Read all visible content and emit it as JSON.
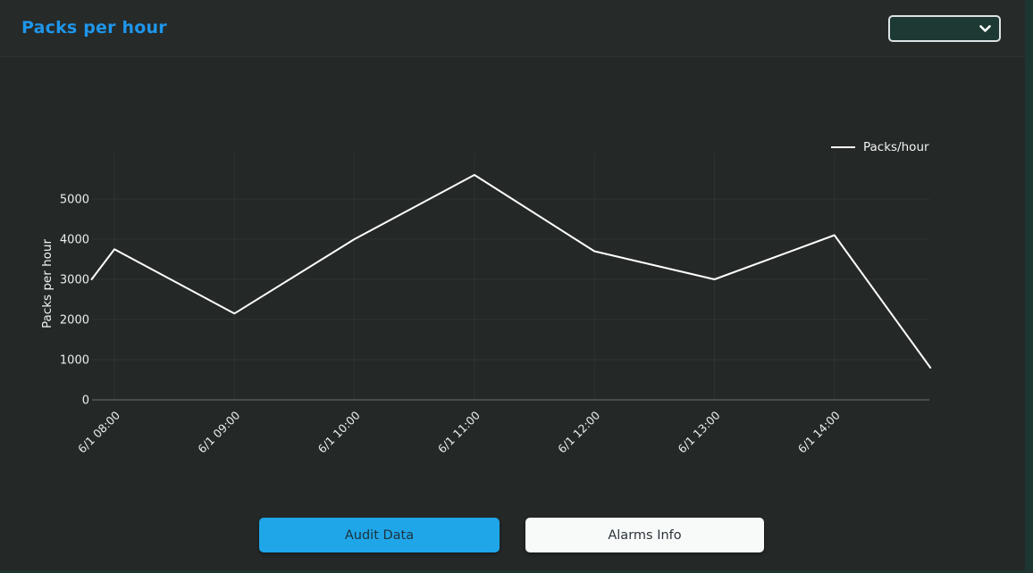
{
  "header": {
    "title": "Packs per hour"
  },
  "controls": {
    "range_select": {
      "selected_value": "",
      "icon": "chevron-down-icon"
    }
  },
  "colors": {
    "accent_blue": "#1e96ea",
    "background": "#242827",
    "frame_teal": "#1e3631",
    "dropdown_bg": "#1d3934",
    "line_color": "#ffffff",
    "primary_button_bg": "#1fa6e9",
    "light_button_bg": "#f8fafa"
  },
  "chart_data": {
    "type": "line",
    "title": "",
    "xlabel": "",
    "ylabel": "Packs per hour",
    "categories": [
      "6/1 08:00",
      "6/1 09:00",
      "6/1 10:00",
      "6/1 11:00",
      "6/1 12:00",
      "6/1 13:00",
      "6/1 14:00"
    ],
    "series": [
      {
        "name": "Packs/hour",
        "color": "#ffffff",
        "values": [
          3750,
          2150,
          4000,
          5600,
          3700,
          3000,
          4100
        ],
        "edge_points": {
          "pre": {
            "offset": -0.19,
            "value": 3000
          },
          "post": {
            "offset": 6.8,
            "value": 800
          }
        }
      }
    ],
    "y_ticks": [
      0,
      1000,
      2000,
      3000,
      4000,
      5000
    ],
    "ylim": [
      0,
      5600
    ],
    "grid": true,
    "legend": {
      "position": "top-right",
      "entries": [
        "Packs/hour"
      ]
    }
  },
  "footer": {
    "buttons": [
      {
        "label": "Audit Data",
        "style": "primary"
      },
      {
        "label": "Alarms Info",
        "style": "light"
      }
    ]
  }
}
